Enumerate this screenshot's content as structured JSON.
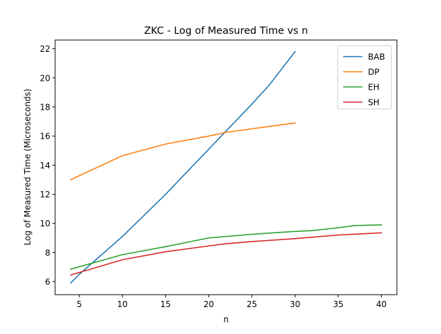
{
  "chart_data": {
    "type": "line",
    "title": "ZKC - Log of Measured Time vs n",
    "xlabel": "n",
    "ylabel": "Log of Measured Time (Microseconds)",
    "xlim": [
      2.2,
      41.8
    ],
    "ylim": [
      5.1,
      22.6
    ],
    "xticks": [
      5,
      10,
      15,
      20,
      25,
      30,
      35,
      40
    ],
    "yticks": [
      6,
      8,
      10,
      12,
      14,
      16,
      18,
      20,
      22
    ],
    "grid": false,
    "legend_position": "top-right",
    "series": [
      {
        "name": "BAB",
        "color": "#1f77b4",
        "x": [
          4,
          5,
          10,
          15,
          20,
          25,
          27,
          30
        ],
        "y": [
          5.9,
          6.5,
          9.1,
          12.0,
          15.1,
          18.2,
          19.5,
          21.8
        ]
      },
      {
        "name": "DP",
        "color": "#ff7f0e",
        "x": [
          4,
          10,
          15,
          20,
          22,
          25,
          30
        ],
        "y": [
          13.0,
          14.65,
          15.45,
          16.0,
          16.25,
          16.5,
          16.9
        ]
      },
      {
        "name": "EH",
        "color": "#2ca02c",
        "x": [
          4,
          10,
          15,
          20,
          22,
          25,
          30,
          32,
          35,
          37,
          40
        ],
        "y": [
          6.85,
          7.85,
          8.4,
          9.0,
          9.1,
          9.25,
          9.45,
          9.5,
          9.7,
          9.85,
          9.9
        ]
      },
      {
        "name": "SH",
        "color": "#d62728",
        "x": [
          4,
          10,
          15,
          20,
          22,
          25,
          30,
          35,
          40
        ],
        "y": [
          6.45,
          7.5,
          8.05,
          8.45,
          8.6,
          8.75,
          8.95,
          9.2,
          9.35
        ]
      }
    ]
  }
}
